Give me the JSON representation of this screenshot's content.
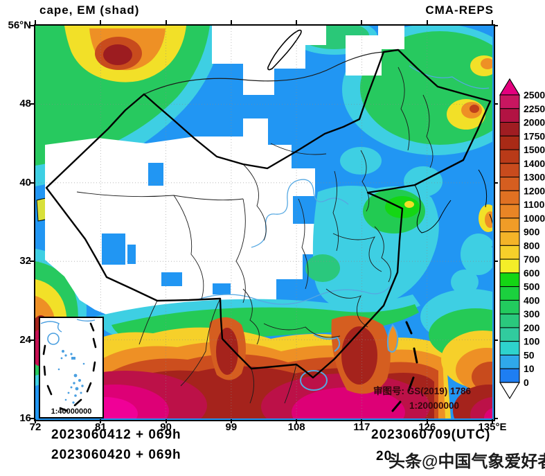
{
  "title": {
    "left": "cape, EM (shad)",
    "right": "CMA-REPS"
  },
  "axes": {
    "x": {
      "ticks": [
        {
          "label": "72",
          "deg": 72
        },
        {
          "label": "81",
          "deg": 81
        },
        {
          "label": "90",
          "deg": 90
        },
        {
          "label": "99",
          "deg": 99
        },
        {
          "label": "108",
          "deg": 108
        },
        {
          "label": "117",
          "deg": 117
        },
        {
          "label": "126",
          "deg": 126
        },
        {
          "label": "135°E",
          "deg": 135
        }
      ]
    },
    "y": {
      "ticks": [
        {
          "label": "56°N",
          "deg": 56
        },
        {
          "label": "48",
          "deg": 48
        },
        {
          "label": "40",
          "deg": 40
        },
        {
          "label": "32",
          "deg": 32
        },
        {
          "label": "24",
          "deg": 24
        },
        {
          "label": "16",
          "deg": 16
        }
      ]
    }
  },
  "colorbar": {
    "boundary_labels": [
      "2500",
      "2250",
      "2000",
      "1750",
      "1500",
      "1400",
      "1300",
      "1200",
      "1100",
      "1000",
      "900",
      "800",
      "700",
      "600",
      "500",
      "400",
      "300",
      "200",
      "100",
      "50",
      "10",
      "0"
    ],
    "band_colors": [
      "#c81660",
      "#b21343",
      "#a01d22",
      "#a92a16",
      "#b93a18",
      "#c84b1d",
      "#d55e20",
      "#e07122",
      "#e98525",
      "#f09c27",
      "#f4b428",
      "#f6d02a",
      "#f4ee28",
      "#14d614",
      "#1bd03e",
      "#22cb5e",
      "#2ac87d",
      "#31cb9e",
      "#2ed3cd",
      "#2fa8ea",
      "#1e7ef2"
    ],
    "arrow_top_color": "#e4007e",
    "arrow_bottom_color": "#ffffff"
  },
  "map": {
    "approval_line1": "审图号: GS(2019) 1786",
    "approval_line2": "1:20000000",
    "inset_scale": "1:40000000"
  },
  "footer": {
    "init_line1": "2023060412 + 069h",
    "init_line2": "2023060420 + 069h",
    "valid_line1": "2023060709(UTC)",
    "valid_line2_visible_prefix": "20",
    "watermark": "头条@中国气象爱好者"
  },
  "chart_data": {
    "type": "heatmap",
    "title": "cape, EM (shad)",
    "model": "CMA-REPS",
    "init_times": [
      "2023060412 + 069h",
      "2023060420 + 069h"
    ],
    "valid_time": "2023060709(UTC)",
    "x_range_deg_east": [
      72,
      135
    ],
    "y_range_deg_north": [
      16,
      56
    ],
    "x_ticks": [
      72,
      81,
      90,
      99,
      108,
      117,
      126,
      135
    ],
    "y_ticks": [
      56,
      48,
      40,
      32,
      24,
      16
    ],
    "levels": [
      0,
      10,
      50,
      100,
      200,
      300,
      400,
      500,
      600,
      700,
      800,
      900,
      1000,
      1100,
      1200,
      1300,
      1400,
      1500,
      1750,
      2000,
      2250,
      2500
    ],
    "level_colors_ascending": [
      "#1e7ef2",
      "#2fa8ea",
      "#2ed3cd",
      "#31cb9e",
      "#2ac87d",
      "#22cb5e",
      "#1bd03e",
      "#14d614",
      "#f4ee28",
      "#f6d02a",
      "#f4b428",
      "#f09c27",
      "#e98525",
      "#e07122",
      "#d55e20",
      "#c84b1d",
      "#b93a18",
      "#a92a16",
      "#a01d22",
      "#b21343",
      "#c81660"
    ],
    "above_max_color": "#e4007e",
    "below_min_color": "#ffffff",
    "grid": "dotted graticule every 9 deg lon / 8 deg lat",
    "legend_position": "right vertical colorbar with over/under arrows",
    "field_summary": [
      {
        "region": "South China, Indochina, South China Sea, Bay of Bengal",
        "approx_value": "1500 to >2500 (dark red / magenta cores)"
      },
      {
        "region": "Guangdong / Hainan coast",
        "approx_value": "1200-2000 tongue extending north"
      },
      {
        "region": "Yunnan-Guizhou-Hunan belt",
        "approx_value": "200-500 green band"
      },
      {
        "region": "NW corner (Central Asia, upper-left)",
        "approx_value": "300-2000, dark-red core ~1750-2000"
      },
      {
        "region": "Tibetan Plateau / Xinjiang / Inner Mongolia interior",
        "approx_value": "below 0 (white, no CAPE) with isolated 0-10 blue grid cells"
      },
      {
        "region": "Mongolia, North China, Bohai/Japan seas",
        "approx_value": "0-50 blue"
      },
      {
        "region": "Northeast China",
        "approx_value": "100-500 green with local 900-1400 spots"
      },
      {
        "region": "East China (Shandong to Yangtze)",
        "approx_value": "50-400 cyan/green patches"
      },
      {
        "region": "Ocean east of Taiwan (SE corner)",
        "approx_value": "600-1500 rising to >2250 at corner"
      },
      {
        "region": "Kashmir sliver on west edge",
        "approx_value": "600-800 yellow"
      }
    ]
  }
}
